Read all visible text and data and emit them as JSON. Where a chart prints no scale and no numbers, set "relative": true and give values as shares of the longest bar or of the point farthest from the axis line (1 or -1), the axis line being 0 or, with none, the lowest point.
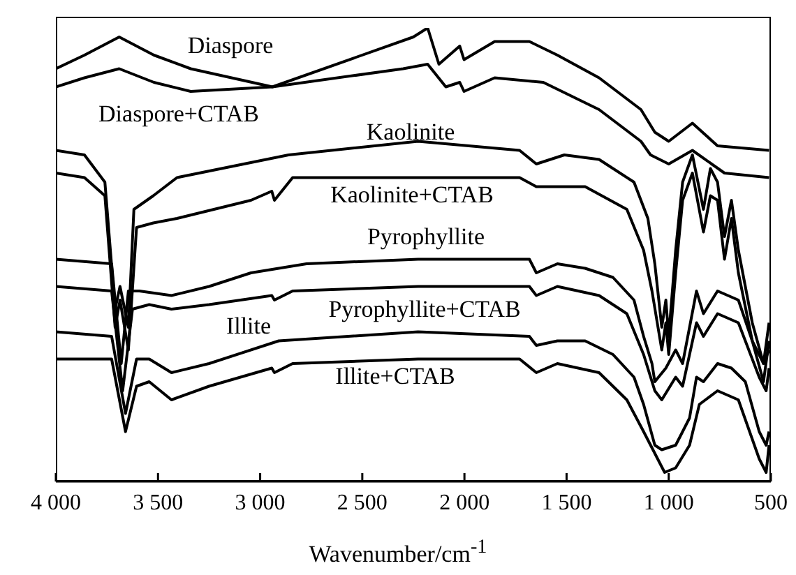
{
  "chart_data": {
    "type": "line",
    "relative": true,
    "xlabel": "Wavenumber/cm$^{-1}$",
    "xlim": [
      4000,
      500
    ],
    "xticks": [
      {
        "value": 4000,
        "label": "4 000"
      },
      {
        "value": 3500,
        "label": "3 500"
      },
      {
        "value": 3000,
        "label": "3 000"
      },
      {
        "value": 2500,
        "label": "2 500"
      },
      {
        "value": 2000,
        "label": "2 000"
      },
      {
        "value": 1500,
        "label": "1 500"
      },
      {
        "value": 1000,
        "label": "1 000"
      },
      500
    ],
    "tick_labels": "x",
    "marker": "none",
    "line_style": "solid",
    "series": [
      {
        "name": "Diaspore",
        "color": "#000000",
        "x": [
          4000,
          3860,
          3690,
          3520,
          3340,
          2940,
          2250,
          2180,
          2125,
          2023,
          2002,
          1852,
          1682,
          1545,
          1341,
          1136,
          1068,
          1000,
          884,
          761,
          509
        ],
        "values": [
          0.91,
          0.94,
          0.98,
          0.94,
          0.91,
          0.87,
          0.98,
          1.0,
          0.92,
          0.96,
          0.93,
          0.97,
          0.97,
          0.94,
          0.89,
          0.82,
          0.77,
          0.75,
          0.79,
          0.74,
          0.73
        ]
      },
      {
        "name": "Diaspore+CTAB",
        "color": "#000000",
        "x": [
          4000,
          3860,
          3690,
          3520,
          3340,
          2940,
          2300,
          2180,
          2091,
          2023,
          2002,
          1852,
          1614,
          1341,
          1136,
          1089,
          1000,
          884,
          727,
          509
        ],
        "values": [
          0.87,
          0.89,
          0.91,
          0.88,
          0.86,
          0.87,
          0.91,
          0.92,
          0.87,
          0.88,
          0.86,
          0.89,
          0.88,
          0.82,
          0.75,
          0.72,
          0.7,
          0.73,
          0.68,
          0.67
        ]
      },
      {
        "name": "Kaolinite",
        "color": "#000000",
        "x": [
          4000,
          3860,
          3760,
          3710,
          3686,
          3645,
          3618,
          3523,
          3407,
          2861,
          2227,
          1730,
          1648,
          1511,
          1341,
          1170,
          1102,
          1068,
          1034,
          1014,
          1000,
          966,
          932,
          884,
          830,
          796,
          761,
          727,
          693,
          659,
          591,
          536,
          509
        ],
        "values": [
          0.73,
          0.72,
          0.66,
          0.38,
          0.43,
          0.34,
          0.6,
          0.63,
          0.67,
          0.72,
          0.75,
          0.73,
          0.7,
          0.72,
          0.71,
          0.66,
          0.58,
          0.48,
          0.34,
          0.4,
          0.32,
          0.51,
          0.66,
          0.72,
          0.6,
          0.69,
          0.66,
          0.54,
          0.62,
          0.51,
          0.35,
          0.26,
          0.35
        ]
      },
      {
        "name": "Kaolinite+CTAB",
        "color": "#000000",
        "x": [
          4000,
          3860,
          3760,
          3710,
          3686,
          3645,
          3605,
          3523,
          3407,
          3045,
          2943,
          2930,
          2841,
          2227,
          1730,
          1648,
          1409,
          1205,
          1123,
          1082,
          1034,
          1014,
          1000,
          966,
          932,
          884,
          830,
          796,
          761,
          727,
          693,
          659,
          591,
          536,
          509
        ],
        "values": [
          0.68,
          0.67,
          0.63,
          0.34,
          0.4,
          0.29,
          0.56,
          0.57,
          0.58,
          0.62,
          0.64,
          0.62,
          0.67,
          0.67,
          0.67,
          0.65,
          0.65,
          0.6,
          0.51,
          0.42,
          0.29,
          0.35,
          0.28,
          0.46,
          0.62,
          0.68,
          0.55,
          0.63,
          0.62,
          0.49,
          0.58,
          0.46,
          0.31,
          0.22,
          0.31
        ]
      },
      {
        "name": "Pyrophyllite",
        "color": "#000000",
        "x": [
          4000,
          3727,
          3680,
          3645,
          3591,
          3434,
          3250,
          3045,
          2773,
          2227,
          1682,
          1648,
          1545,
          1409,
          1273,
          1170,
          1123,
          1082,
          1068,
          1014,
          966,
          932,
          864,
          830,
          761,
          659,
          591,
          536,
          509
        ],
        "values": [
          0.49,
          0.48,
          0.26,
          0.42,
          0.42,
          0.41,
          0.43,
          0.46,
          0.48,
          0.49,
          0.49,
          0.46,
          0.48,
          0.47,
          0.45,
          0.4,
          0.32,
          0.26,
          0.22,
          0.25,
          0.29,
          0.26,
          0.42,
          0.37,
          0.42,
          0.4,
          0.31,
          0.26,
          0.29
        ]
      },
      {
        "name": "Pyrophyllite+CTAB",
        "color": "#000000",
        "x": [
          4000,
          3727,
          3673,
          3625,
          3543,
          3434,
          3250,
          2943,
          2930,
          2841,
          2227,
          1682,
          1648,
          1545,
          1341,
          1205,
          1123,
          1068,
          1034,
          966,
          932,
          864,
          830,
          761,
          659,
          557,
          523,
          509
        ],
        "values": [
          0.43,
          0.42,
          0.2,
          0.38,
          0.39,
          0.38,
          0.39,
          0.41,
          0.4,
          0.42,
          0.43,
          0.43,
          0.41,
          0.43,
          0.41,
          0.37,
          0.28,
          0.2,
          0.18,
          0.23,
          0.21,
          0.35,
          0.32,
          0.37,
          0.35,
          0.23,
          0.2,
          0.25
        ]
      },
      {
        "name": "Illite",
        "color": "#000000",
        "x": [
          4000,
          3727,
          3659,
          3605,
          3543,
          3434,
          3250,
          2909,
          2227,
          1682,
          1648,
          1545,
          1409,
          1273,
          1170,
          1123,
          1068,
          1034,
          966,
          932,
          898,
          864,
          830,
          761,
          693,
          625,
          557,
          523,
          509
        ],
        "values": [
          0.33,
          0.32,
          0.15,
          0.27,
          0.27,
          0.24,
          0.26,
          0.31,
          0.33,
          0.32,
          0.3,
          0.31,
          0.31,
          0.28,
          0.23,
          0.17,
          0.08,
          0.07,
          0.08,
          0.11,
          0.14,
          0.23,
          0.22,
          0.26,
          0.25,
          0.22,
          0.11,
          0.08,
          0.11
        ]
      },
      {
        "name": "Illite+CTAB",
        "color": "#000000",
        "x": [
          4000,
          3727,
          3659,
          3605,
          3543,
          3434,
          3250,
          2943,
          2930,
          2841,
          2227,
          1730,
          1648,
          1545,
          1341,
          1205,
          1123,
          1020,
          966,
          898,
          850,
          761,
          659,
          557,
          523,
          509
        ],
        "values": [
          0.27,
          0.27,
          0.11,
          0.21,
          0.22,
          0.18,
          0.21,
          0.25,
          0.24,
          0.26,
          0.27,
          0.27,
          0.24,
          0.26,
          0.24,
          0.18,
          0.11,
          0.02,
          0.03,
          0.08,
          0.17,
          0.2,
          0.18,
          0.05,
          0.02,
          0.08
        ]
      }
    ]
  }
}
